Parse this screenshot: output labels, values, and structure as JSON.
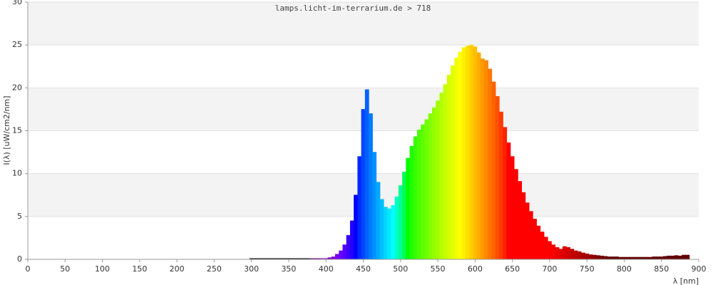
{
  "chart_data": {
    "type": "spectrum",
    "title": "lamps.licht-im-terrarium.de > 718",
    "x_label": "λ [nm]",
    "y_label": "I(λ)  [uW/cm2/nm]",
    "colormap": "spectral",
    "grid": true,
    "xlim": [
      0,
      900
    ],
    "xticks": [
      0,
      50,
      100,
      150,
      200,
      250,
      300,
      350,
      400,
      450,
      500,
      550,
      600,
      650,
      700,
      750,
      800,
      850,
      900
    ],
    "ylim": [
      0,
      30
    ],
    "yticks": [
      0,
      5,
      10,
      15,
      20,
      25,
      30
    ],
    "x": [
      300,
      305,
      310,
      315,
      320,
      325,
      330,
      335,
      340,
      345,
      350,
      355,
      360,
      365,
      370,
      375,
      380,
      385,
      390,
      395,
      400,
      405,
      410,
      415,
      420,
      425,
      430,
      435,
      440,
      445,
      450,
      455,
      460,
      465,
      470,
      475,
      480,
      485,
      490,
      495,
      500,
      505,
      510,
      515,
      520,
      525,
      530,
      535,
      540,
      545,
      550,
      555,
      560,
      565,
      570,
      575,
      580,
      585,
      590,
      595,
      600,
      605,
      610,
      615,
      620,
      625,
      630,
      635,
      640,
      645,
      650,
      655,
      660,
      665,
      670,
      675,
      680,
      685,
      690,
      695,
      700,
      705,
      710,
      715,
      720,
      725,
      730,
      735,
      740,
      745,
      750,
      755,
      760,
      765,
      770,
      775,
      780,
      785,
      790,
      795,
      800,
      805,
      810,
      815,
      820,
      825,
      830,
      835,
      840,
      845,
      850,
      855,
      860,
      865,
      870,
      875,
      880,
      885
    ],
    "values": [
      0.1,
      0.1,
      0.1,
      0.1,
      0.1,
      0.1,
      0.1,
      0.1,
      0.1,
      0.1,
      0.1,
      0.1,
      0.1,
      0.1,
      0.1,
      0.1,
      0.1,
      0.1,
      0.1,
      0.1,
      0.1,
      0.2,
      0.3,
      0.6,
      1.0,
      1.7,
      2.8,
      4.5,
      7.5,
      12,
      17.5,
      19.8,
      17,
      12.5,
      9,
      7,
      6.1,
      5.9,
      6.3,
      7.3,
      8.6,
      10.2,
      11.8,
      13.2,
      14.3,
      15.1,
      15.7,
      16.3,
      17,
      17.7,
      18.5,
      19.4,
      20.4,
      21.5,
      22.6,
      23.5,
      24.2,
      24.7,
      24.9,
      25,
      24.8,
      24.1,
      23.4,
      23.2,
      22.2,
      20.7,
      19,
      17.2,
      15.4,
      13.6,
      12,
      10.5,
      9.1,
      7.8,
      6.6,
      5.6,
      4.7,
      3.9,
      3.2,
      2.6,
      2.1,
      1.7,
      1.4,
      1.2,
      1.5,
      1.4,
      1.2,
      1.0,
      0.9,
      0.75,
      0.65,
      0.55,
      0.5,
      0.45,
      0.4,
      0.35,
      0.3,
      0.3,
      0.3,
      0.25,
      0.25,
      0.25,
      0.25,
      0.25,
      0.25,
      0.25,
      0.25,
      0.25,
      0.3,
      0.3,
      0.3,
      0.35,
      0.4,
      0.4,
      0.45,
      0.4,
      0.5,
      0.5
    ]
  }
}
